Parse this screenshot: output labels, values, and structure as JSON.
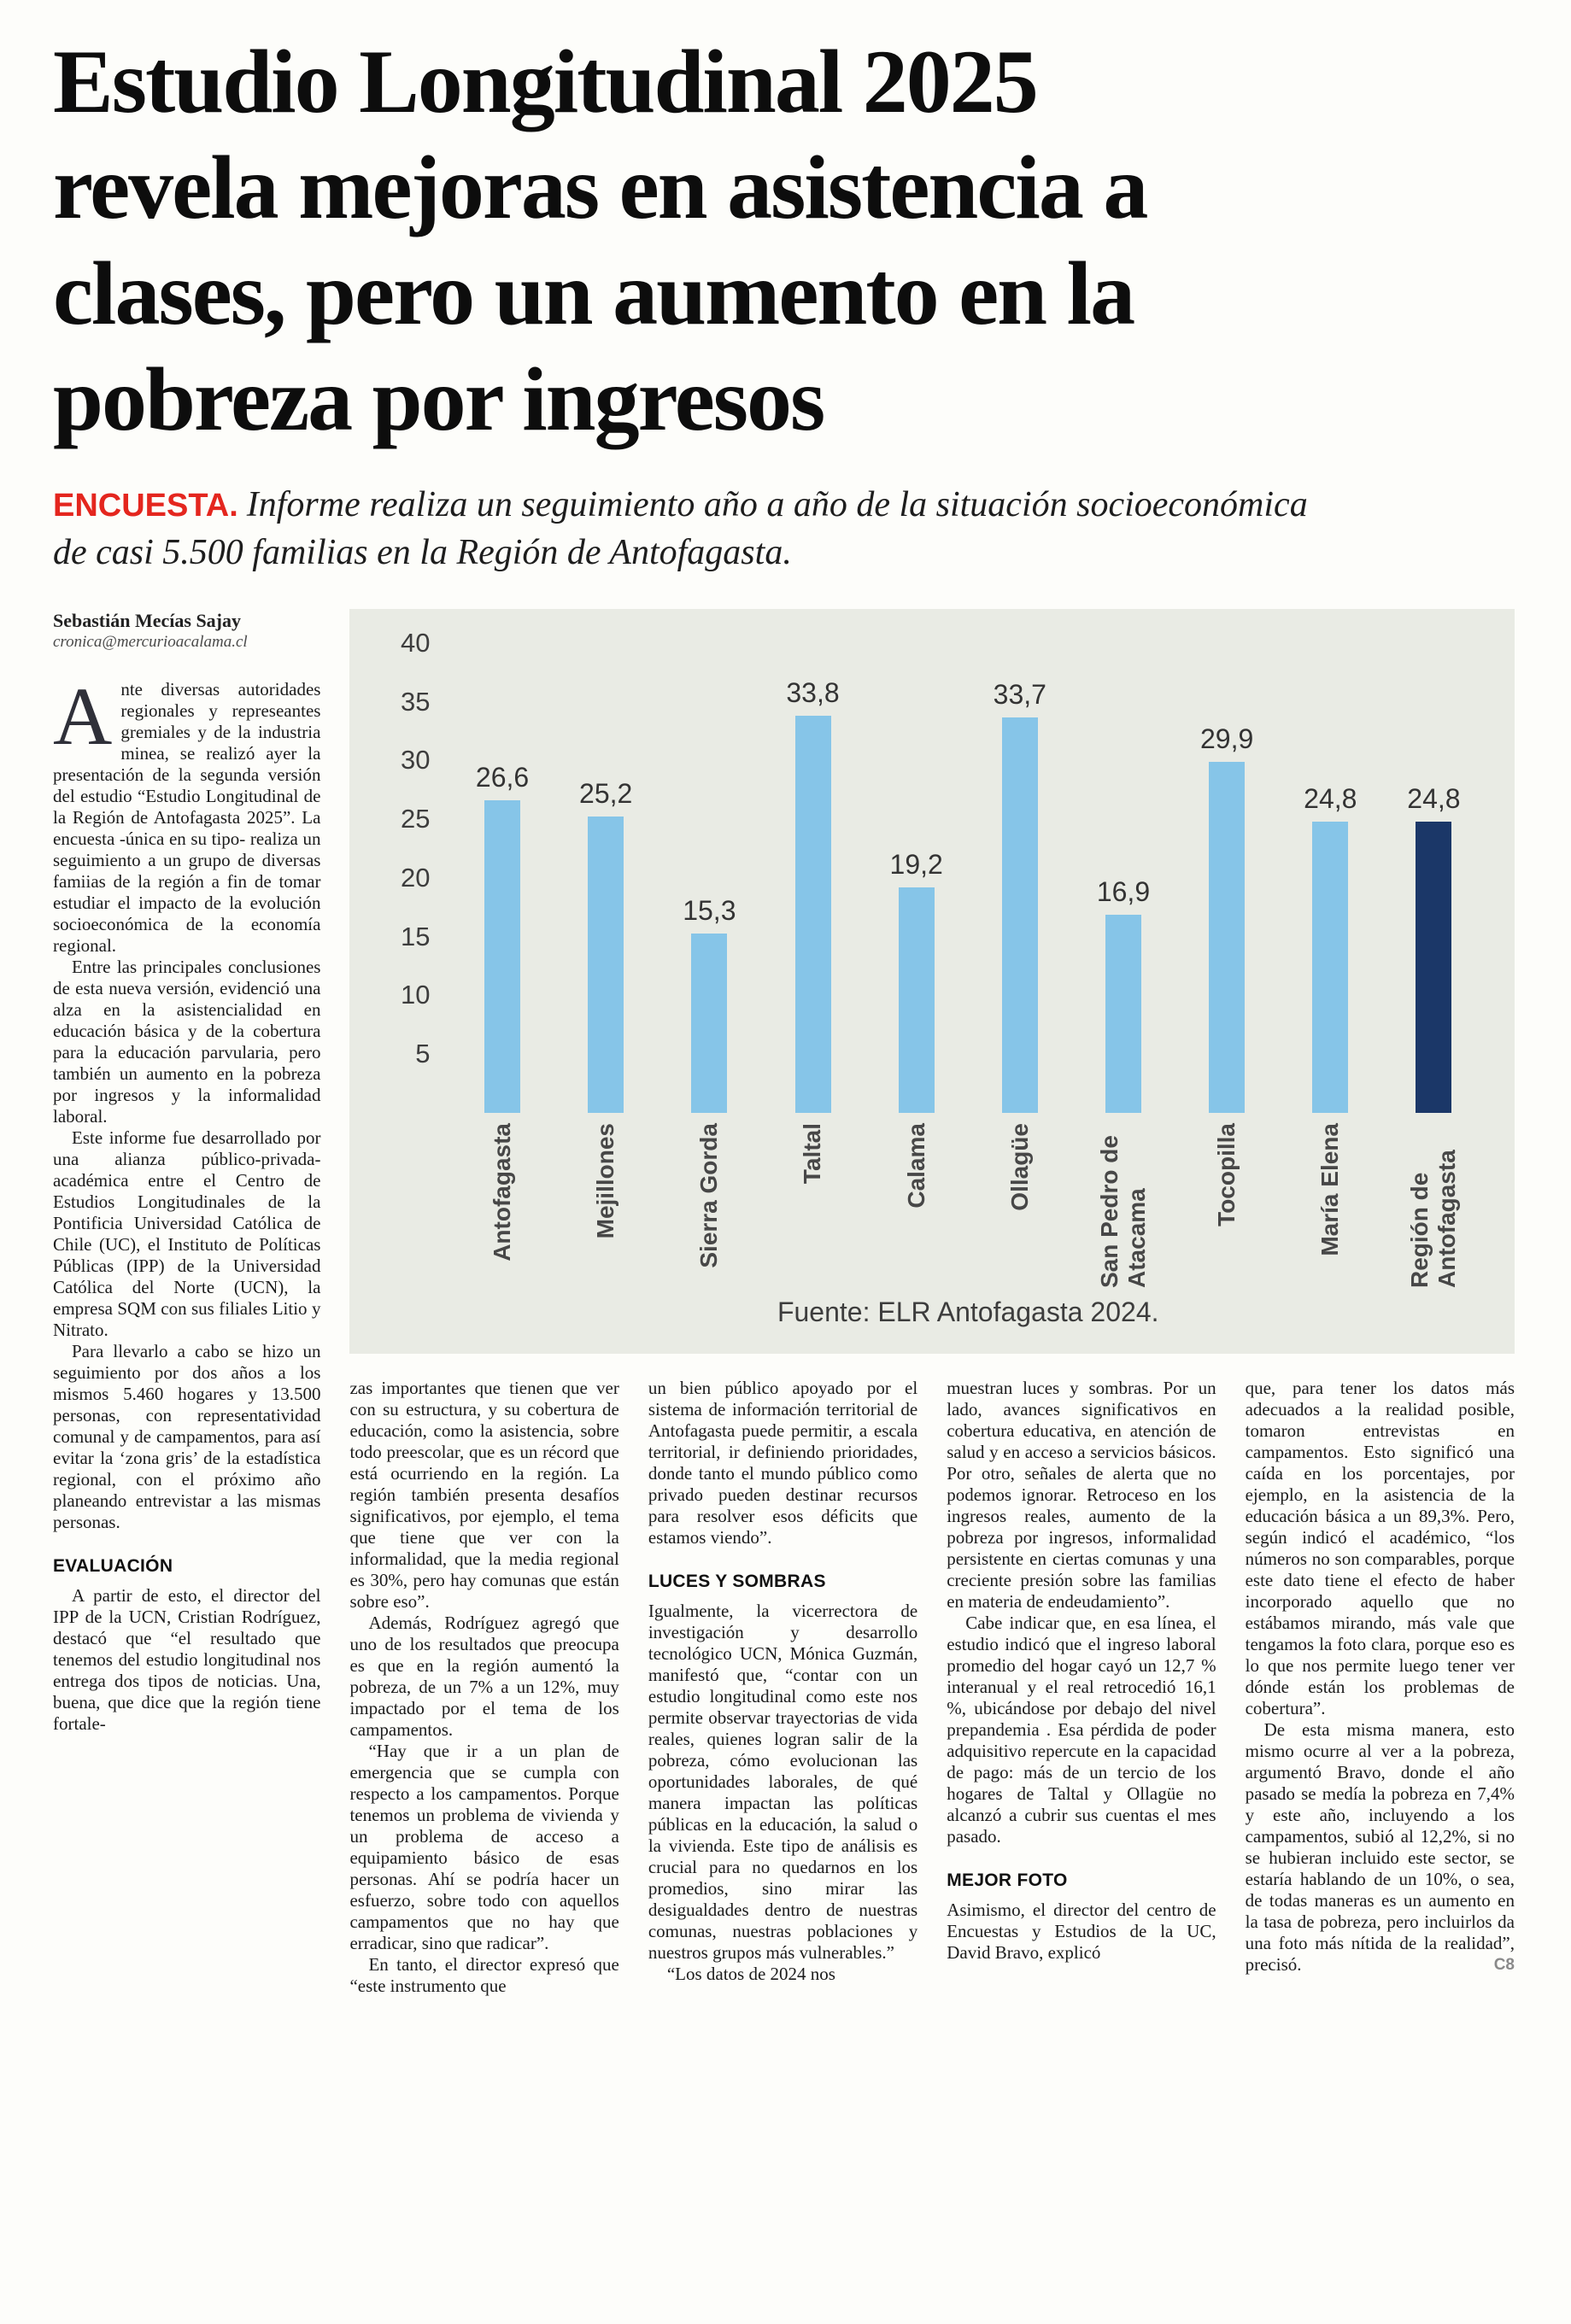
{
  "page": {
    "headline": "Estudio Longitudinal 2025\nrevela mejoras en asistencia a\nclases, pero un aumento en la\npobreza por ingresos",
    "kicker": "ENCUESTA.",
    "subhead": "Informe realiza un seguimiento año a año de la situación socioeconómica\nde casi 5.500 familias en la Región de Antofagasta.",
    "byline_author": "Sebastián Mecías Sajay",
    "byline_email": "cronica@mercurioacalama.cl",
    "end_mark": "C8"
  },
  "chart_data": {
    "type": "bar",
    "title": "",
    "categories": [
      "Antofagasta",
      "Mejillones",
      "Sierra Gorda",
      "Taltal",
      "Calama",
      "Ollagüe",
      "San Pedro de Atacama",
      "Tocopilla",
      "María Elena",
      "Región de Antofagasta"
    ],
    "values": [
      26.6,
      25.2,
      15.3,
      33.8,
      19.2,
      33.7,
      16.9,
      29.9,
      24.8,
      24.8
    ],
    "value_labels": [
      "26,6",
      "25,2",
      "15,3",
      "33,8",
      "19,2",
      "33,7",
      "16,9",
      "29,9",
      "24,8",
      "24,8"
    ],
    "xlabel": "",
    "ylabel": "",
    "ylim": [
      0,
      40
    ],
    "yticks": [
      40,
      35,
      30,
      25,
      20,
      15,
      10,
      5
    ],
    "grid": false,
    "legend_position": "none",
    "bar_color": "#86c5e8",
    "highlight_index": 9,
    "highlight_color": "#1b3768",
    "source": "Fuente: ELR Antofagasta 2024."
  },
  "article": {
    "columns": [
      {
        "blocks": [
          {
            "type": "para",
            "dropcap": "A",
            "no_indent": true,
            "text": "nte diversas autoridades regionales y represeantes gremiales y de la industria minea, se realizó ayer la presentación de la segunda versión del estudio “Estudio Longitudinal de la Región de Antofagasta 2025”. La encuesta -única en su tipo- realiza un seguimiento a un grupo de diversas famiias de la región a fin de tomar estudiar el impacto de la evolución socioeconómica de la economía regional."
          },
          {
            "type": "para",
            "text": "Entre las principales conclusiones de esta nueva versión, evidenció una alza en la asistencialidad en educación básica y de la cobertura para la educación parvularia, pero también un aumento en la pobreza por ingresos y la informalidad laboral."
          },
          {
            "type": "para",
            "text": "Este informe fue desarrollado por una alianza público-privada-académica entre el Centro de Estudios Longitudinales de la Pontificia Universidad Católica de Chile (UC), el Instituto de Políticas Públicas (IPP) de la Universidad Católica del Norte (UCN), la empresa SQM con sus filiales Litio y Nitrato."
          },
          {
            "type": "para",
            "text": "Para llevarlo a cabo se hizo un seguimiento por dos años a los mismos 5.460 hogares y 13.500 personas, con representatividad comunal y de campamentos, para así evitar la ‘zona gris’ de la estadística regional, con el próximo año planeando entrevistar a las mismas personas."
          },
          {
            "type": "heading",
            "text": "EVALUACIÓN"
          },
          {
            "type": "para",
            "text": "A partir de esto, el director del IPP de la UCN, Cristian Rodríguez, destacó que “el resultado que tenemos del estudio longitudinal nos entrega dos tipos de noticias. Una, buena, que dice que la región tiene fortale-"
          }
        ]
      },
      {
        "blocks": [
          {
            "type": "para",
            "no_indent": true,
            "text": "zas importantes que tienen que ver con su estructura, y su cobertura de educación, como la asistencia, sobre todo preescolar, que es un récord que está ocurriendo en la región. La región también presenta desafíos significativos, por ejemplo, el tema que tiene que ver con la informalidad, que la media regional es 30%, pero hay comunas que están sobre eso”."
          },
          {
            "type": "para",
            "text": "Además, Rodríguez agregó que uno de los resultados que preocupa es que en la región aumentó la pobreza, de un 7% a un 12%, muy impactado por el tema de los campamentos."
          },
          {
            "type": "para",
            "text": "“Hay que ir a un plan de emergencia que se cumpla con respecto a los campamentos. Porque tenemos un problema de vivienda y un problema de acceso a equipamiento básico de esas personas. Ahí se podría hacer un esfuerzo, sobre todo con aquellos campamentos que no hay que erradicar, sino que radicar”."
          },
          {
            "type": "para",
            "text": "En tanto, el director expresó que “este instrumento que"
          }
        ]
      },
      {
        "blocks": [
          {
            "type": "para",
            "no_indent": true,
            "text": "un bien público apoyado por el sistema de información territorial de Antofagasta puede permitir, a escala territorial, ir definiendo prioridades, donde tanto el mundo público como privado pueden destinar recursos para resolver esos déficits que estamos viendo”."
          },
          {
            "type": "heading",
            "text": "LUCES Y SOMBRAS"
          },
          {
            "type": "para",
            "no_indent": true,
            "text": "Igualmente, la vicerrectora de investigación y desarrollo tecnológico UCN, Mónica Guzmán, manifestó que, “contar con un estudio longitudinal como este nos permite observar trayectorias de vida reales, quienes logran salir de la pobreza, cómo evolucionan las oportunidades laborales, de qué manera impactan las políticas públicas en la educación, la salud o la vivienda. Este tipo de análisis es crucial para no quedarnos en los promedios, sino mirar las desigualdades dentro de nuestras comunas, nuestras poblaciones y nuestros grupos más vulnerables.”"
          },
          {
            "type": "para",
            "text": "“Los datos de 2024 nos"
          }
        ]
      },
      {
        "blocks": [
          {
            "type": "para",
            "no_indent": true,
            "text": "muestran luces y sombras. Por un lado, avances significativos en cobertura educativa, en atención de salud y en acceso a servicios básicos. Por otro, señales de alerta que no podemos ignorar. Retroceso en los ingresos reales, aumento de la pobreza por ingresos, informalidad persistente en ciertas comunas y una creciente presión sobre las familias en materia de endeudamiento”."
          },
          {
            "type": "para",
            "text": "Cabe indicar que, en esa línea, el estudio indicó que el ingreso laboral promedio del hogar cayó un 12,7 % interanual y el real retrocedió 16,1 %, ubicándose por debajo del nivel prepandemia . Esa pérdida de poder adquisitivo repercute en la capacidad de pago: más de un tercio de los hogares de Taltal y Ollagüe no alcanzó a cubrir sus cuentas el mes pasado."
          },
          {
            "type": "heading",
            "text": "MEJOR FOTO"
          },
          {
            "type": "para",
            "no_indent": true,
            "text": "Asimismo, el director del centro de Encuestas y Estudios de la UC, David Bravo, explicó"
          }
        ]
      },
      {
        "blocks": [
          {
            "type": "para",
            "no_indent": true,
            "text": "que, para tener los datos más adecuados a la realidad posible, tomaron entrevistas en campamentos. Esto significó una caída en los porcentajes, por ejemplo, en la asistencia de la educación básica a un 89,3%. Pero, según indicó el académico, “los números no son comparables, porque este dato tiene el efecto de haber incorporado aquello que no estábamos mirando, más vale que tengamos la foto clara, porque eso es lo que nos permite luego tener ver dónde están los problemas de cobertura”."
          },
          {
            "type": "para",
            "end_mark": true,
            "text": "De esta misma manera, esto mismo ocurre al ver a la pobreza, argumentó Bravo, donde el año pasado se medía la pobreza en 7,4% y este año, incluyendo a los campamentos, subió al 12,2%, si no se hubieran incluido este sector, se estaría hablando de un 10%, o sea, de todas maneras es un aumento en la tasa de pobreza, pero incluirlos da una foto más nítida de la realidad”, precisó."
          }
        ]
      }
    ]
  }
}
